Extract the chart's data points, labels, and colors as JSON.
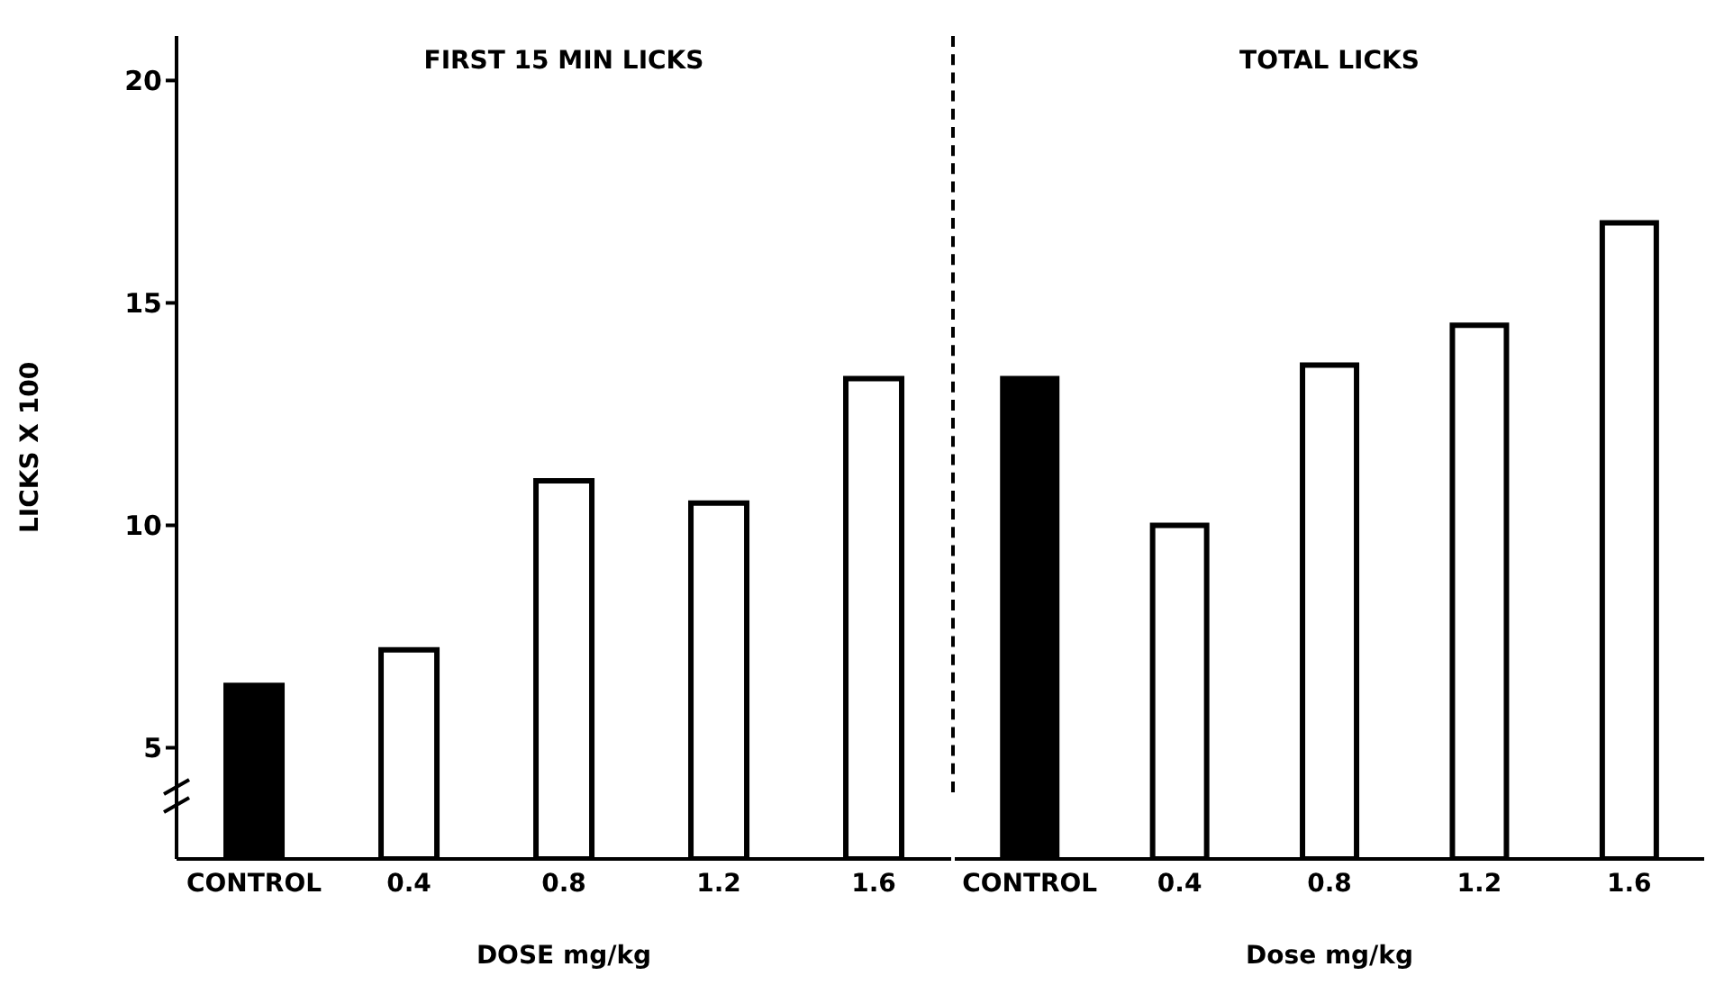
{
  "chart_data": [
    {
      "type": "bar",
      "title": "FIRST 15 MIN LICKS",
      "xlabel": "DOSE mg/kg",
      "ylabel": "LICKS X 100",
      "categories": [
        "CONTROL",
        "0.4",
        "0.8",
        "1.2",
        "1.6"
      ],
      "values": [
        6.4,
        7.2,
        11.0,
        10.5,
        13.3
      ],
      "colors": [
        "#000000",
        "#ffffff",
        "#ffffff",
        "#ffffff",
        "#ffffff"
      ],
      "ylim": [
        2.5,
        21
      ],
      "yticks": [
        5,
        10,
        15,
        20
      ]
    },
    {
      "type": "bar",
      "title": "TOTAL LICKS",
      "xlabel": "Dose mg/kg",
      "categories": [
        "CONTROL",
        "0.4",
        "0.8",
        "1.2",
        "1.6"
      ],
      "values": [
        13.3,
        10.0,
        13.6,
        14.5,
        16.8
      ],
      "colors": [
        "#000000",
        "#ffffff",
        "#ffffff",
        "#ffffff",
        "#ffffff"
      ],
      "ylim": [
        2.5,
        21
      ],
      "yticks": [
        5,
        10,
        15,
        20
      ],
      "tick_labels": "x"
    }
  ]
}
